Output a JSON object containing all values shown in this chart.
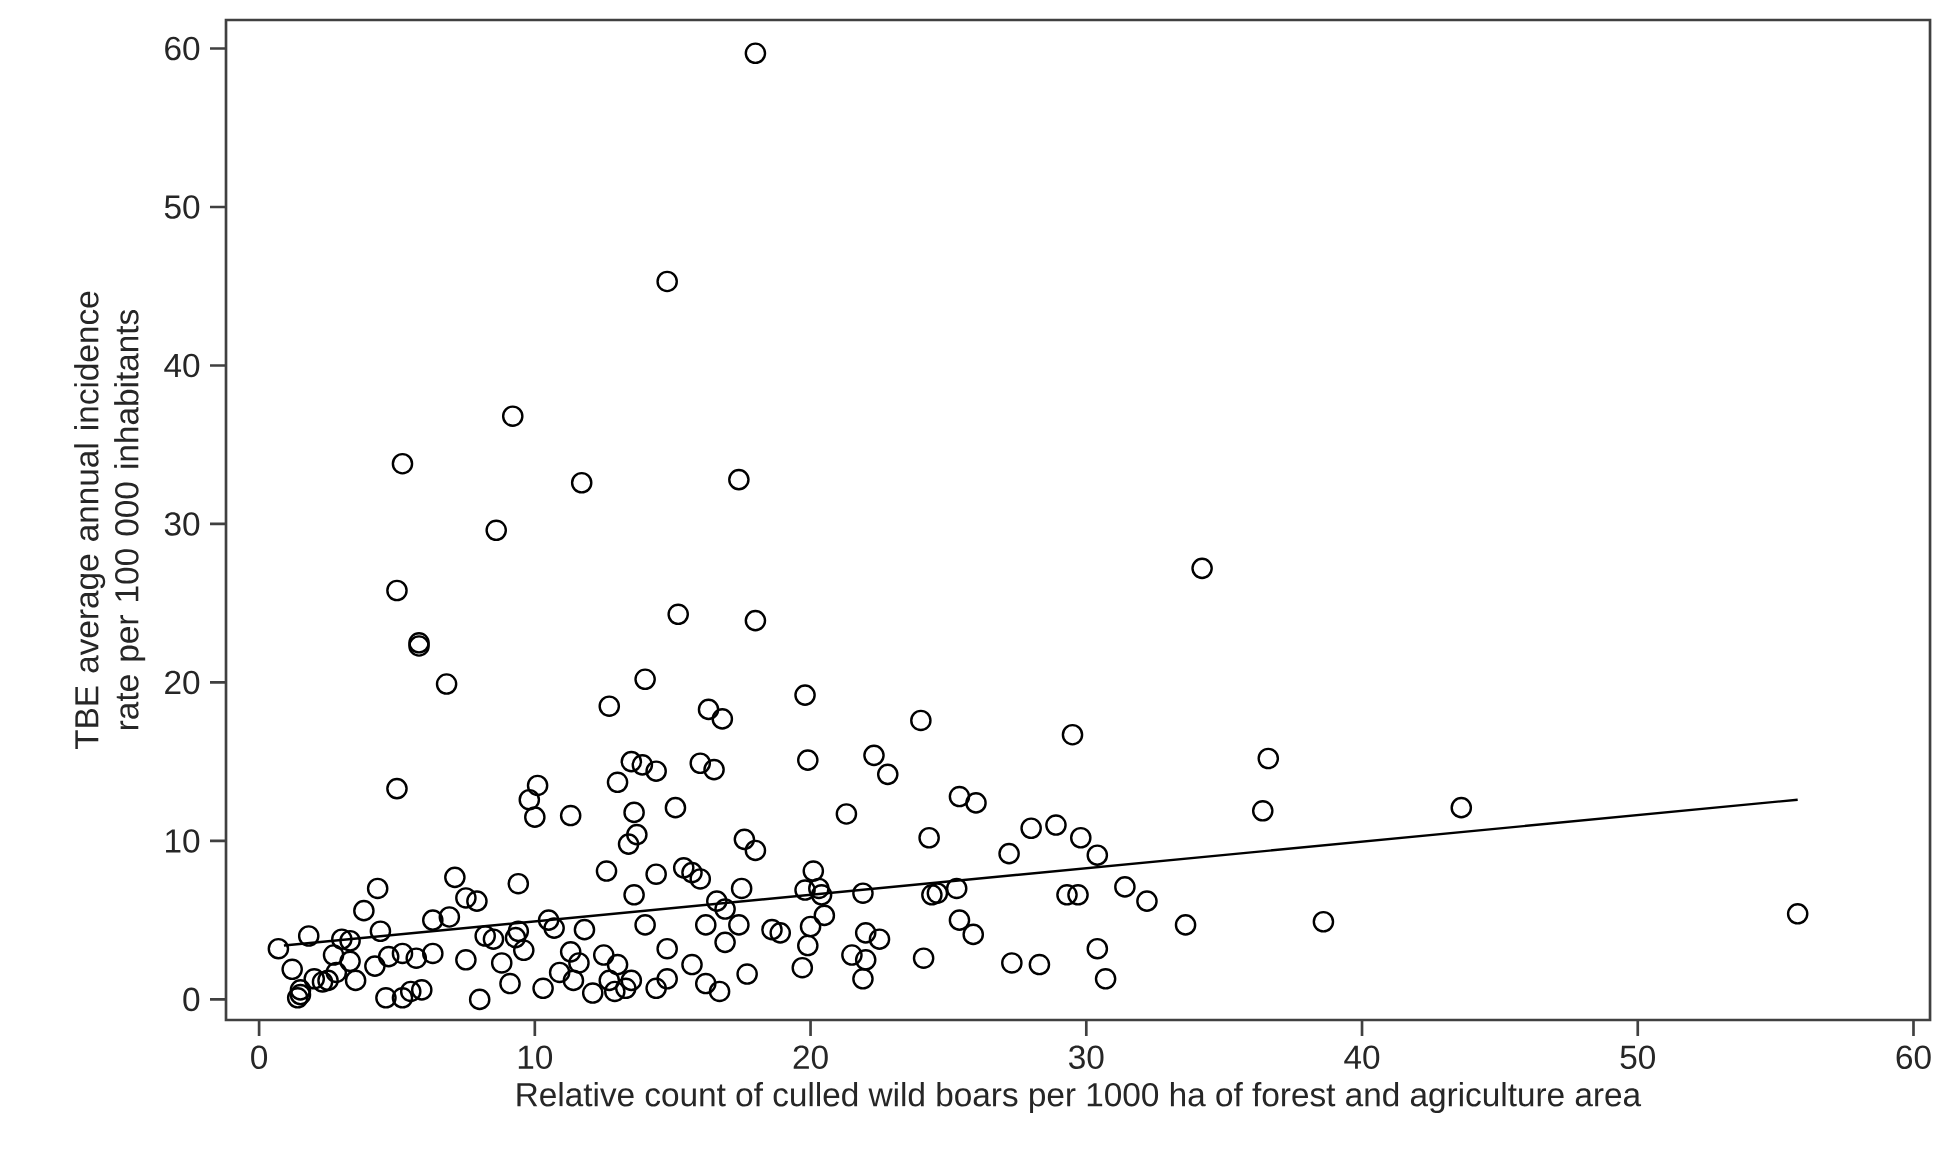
{
  "chart_data": {
    "type": "scatter",
    "xlabel": "Relative count of culled wild boars per 1000 ha of forest and agriculture area",
    "ylabel": "TBE average annual incidence rate per 100 000 inhabitants",
    "xlim": [
      -1.2,
      60.6
    ],
    "ylim": [
      -1.3,
      61.8
    ],
    "xticks": [
      0,
      10,
      20,
      30,
      40,
      50,
      60
    ],
    "yticks": [
      0,
      10,
      20,
      30,
      40,
      50,
      60
    ],
    "series": [
      {
        "color": "#000000",
        "marker": "circle",
        "x": [
          18.0,
          14.8,
          9.2,
          5.2,
          11.7,
          17.4,
          8.6,
          34.2,
          5.0,
          15.2,
          18.0,
          5.8,
          5.8,
          6.8,
          14.0,
          12.7,
          16.3,
          16.8,
          19.8,
          24.0,
          29.5,
          36.6,
          36.4,
          43.6,
          38.6,
          55.8,
          33.6,
          30.7,
          30.4,
          5.0,
          9.8,
          10.1,
          10.0,
          11.3,
          13.5,
          13.9,
          14.4,
          16.0,
          16.5,
          22.3,
          22.8,
          19.9,
          13.0,
          15.1,
          13.6,
          13.7,
          13.4,
          12.6,
          15.4,
          15.7,
          16.0,
          17.6,
          18.0,
          17.5,
          16.6,
          16.9,
          19.8,
          20.1,
          20.3,
          20.4,
          20.5,
          20.0,
          19.9,
          21.3,
          21.9,
          22.0,
          22.5,
          21.5,
          22.0,
          21.9,
          24.3,
          24.4,
          24.6,
          24.1,
          25.3,
          25.4,
          25.4,
          26.0,
          25.9,
          27.2,
          27.3,
          28.0,
          28.3,
          28.9,
          29.3,
          29.7,
          29.8,
          30.4,
          31.4,
          32.2,
          9.4,
          7.1,
          7.5,
          4.3,
          3.8,
          4.4,
          3.0,
          3.3,
          1.8,
          2.7,
          0.7,
          1.2,
          1.5,
          1.4,
          1.5,
          2.0,
          2.3,
          3.5,
          4.6,
          5.2,
          5.5,
          5.9,
          8.0,
          9.1,
          10.3,
          11.4,
          11.6,
          12.1,
          12.7,
          12.9,
          13.3,
          13.5,
          14.4,
          14.8,
          15.7,
          16.2,
          16.7,
          17.4,
          17.7,
          18.6,
          18.9,
          19.7,
          14.8,
          14.0,
          13.6,
          14.4,
          10.5,
          9.4,
          9.3,
          8.2,
          6.9,
          6.3,
          5.7,
          5.2,
          4.7,
          4.2,
          3.3,
          2.8,
          2.5,
          7.5,
          8.8,
          9.6,
          10.7,
          11.3,
          11.8,
          12.5,
          13.0,
          16.2,
          16.9,
          6.3,
          7.9,
          8.5,
          10.9
        ],
        "values": [
          59.7,
          45.3,
          36.8,
          33.8,
          32.6,
          32.8,
          29.6,
          27.2,
          25.8,
          24.3,
          23.9,
          22.5,
          22.3,
          19.9,
          20.2,
          18.5,
          18.3,
          17.7,
          19.2,
          17.6,
          16.7,
          15.2,
          11.9,
          12.1,
          4.9,
          5.4,
          4.7,
          1.3,
          3.2,
          13.3,
          12.6,
          13.5,
          11.5,
          11.6,
          15.0,
          14.8,
          14.4,
          14.9,
          14.5,
          15.4,
          14.2,
          15.1,
          13.7,
          12.1,
          11.8,
          10.4,
          9.8,
          8.1,
          8.3,
          8.0,
          7.6,
          10.1,
          9.4,
          7.0,
          6.2,
          5.7,
          6.9,
          8.1,
          7.0,
          6.6,
          5.3,
          4.6,
          3.4,
          11.7,
          6.7,
          4.2,
          3.8,
          2.8,
          2.5,
          1.3,
          10.2,
          6.6,
          6.7,
          2.6,
          7.0,
          5.0,
          12.8,
          12.4,
          4.1,
          9.2,
          2.3,
          10.8,
          2.2,
          11.0,
          6.6,
          6.6,
          10.2,
          9.1,
          7.1,
          6.2,
          7.3,
          7.7,
          6.4,
          7.0,
          5.6,
          4.3,
          3.8,
          3.7,
          4.0,
          2.8,
          3.2,
          1.9,
          0.6,
          0.1,
          0.3,
          1.3,
          1.1,
          1.2,
          0.1,
          0.1,
          0.5,
          0.6,
          0.0,
          1.0,
          0.7,
          1.2,
          2.3,
          0.4,
          1.2,
          0.5,
          0.7,
          1.2,
          0.7,
          1.3,
          2.2,
          1.0,
          0.5,
          4.7,
          1.6,
          4.4,
          4.2,
          2.0,
          3.2,
          4.7,
          6.6,
          7.9,
          5.0,
          4.3,
          3.9,
          4.0,
          5.2,
          2.9,
          2.6,
          2.9,
          2.7,
          2.1,
          2.4,
          1.7,
          1.2,
          2.5,
          2.3,
          3.1,
          4.5,
          3.0,
          4.4,
          2.8,
          2.2,
          4.7,
          3.6,
          5.0,
          6.2,
          3.8,
          1.7
        ]
      },
      {
        "type": "line",
        "color": "#000000",
        "marker": "none",
        "line_style": "solid",
        "x": [
          0.9,
          55.8
        ],
        "values": [
          3.4,
          12.6
        ]
      }
    ]
  }
}
